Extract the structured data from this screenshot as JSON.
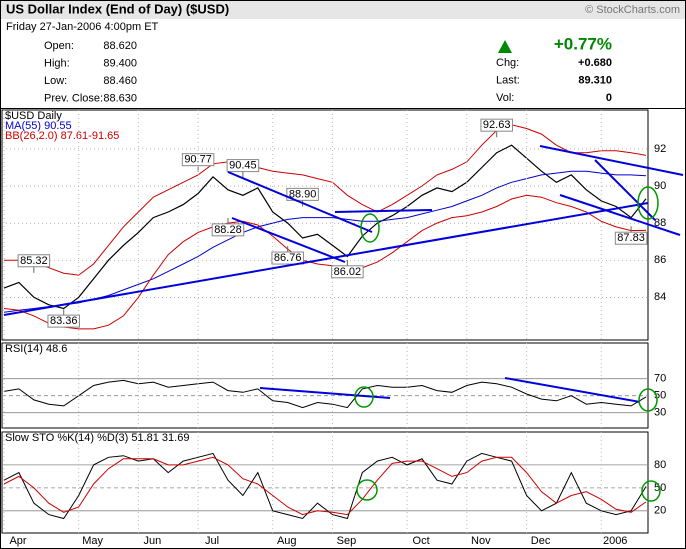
{
  "header": {
    "title": "US Dollar Index (End of Day) ($USD)",
    "copyright": "© StockCharts.com",
    "date": "Friday  27-Jan-2006  4:00pm ET",
    "left": [
      {
        "label": "Open:",
        "value": "88.620"
      },
      {
        "label": "High:",
        "value": "89.400"
      },
      {
        "label": "Low:",
        "value": "88.460"
      },
      {
        "label": "Prev. Close:",
        "value": "88.630"
      }
    ],
    "change_pct": "+0.77%",
    "right": [
      {
        "label": "Chg:",
        "value": "+0.680"
      },
      {
        "label": "Last:",
        "value": "89.310"
      },
      {
        "label": "Vol:",
        "value": "0"
      }
    ]
  },
  "chart_data": [
    {
      "type": "line",
      "title": "$USD Daily",
      "ylim": [
        81.7,
        94.1
      ],
      "yticks": [
        84,
        86,
        88,
        90,
        92
      ],
      "series": [
        {
          "color": "#000000",
          "values": [
            84.5,
            84.8,
            84.0,
            83.6,
            83.4,
            84.0,
            85.0,
            86.0,
            86.8,
            87.5,
            88.3,
            88.6,
            89.0,
            89.6,
            90.5,
            89.8,
            89.5,
            89.9,
            88.6,
            88.0,
            87.2,
            87.4,
            86.8,
            86.2,
            87.3,
            88.0,
            88.4,
            88.9,
            89.5,
            89.9,
            89.7,
            90.2,
            91.0,
            91.8,
            92.2,
            91.5,
            90.8,
            90.2,
            90.6,
            89.8,
            89.2,
            88.9,
            88.3,
            89.31
          ]
        },
        {
          "name": "MA(55) 90.55",
          "color": "#0000cc",
          "values": [
            83.2,
            83.3,
            83.4,
            83.5,
            83.6,
            83.7,
            83.9,
            84.1,
            84.4,
            84.7,
            85.0,
            85.4,
            85.8,
            86.2,
            86.7,
            87.1,
            87.5,
            87.8,
            88.0,
            88.2,
            88.3,
            88.3,
            88.3,
            88.2,
            88.1,
            88.1,
            88.2,
            88.3,
            88.5,
            88.7,
            88.9,
            89.2,
            89.5,
            89.9,
            90.2,
            90.4,
            90.6,
            90.7,
            90.8,
            90.8,
            90.7,
            90.6,
            90.6,
            90.55
          ]
        },
        {
          "name": "BB(26,2.0) 87.61-91.65",
          "color": "#cc0000",
          "upper": [
            86.0,
            86.0,
            85.9,
            85.6,
            85.3,
            85.2,
            85.8,
            86.8,
            87.8,
            88.6,
            89.4,
            89.8,
            90.2,
            90.6,
            91.2,
            91.3,
            91.2,
            91.0,
            90.8,
            90.7,
            90.6,
            90.4,
            90.2,
            89.5,
            89.0,
            88.6,
            89.0,
            89.5,
            90.0,
            90.6,
            90.9,
            91.3,
            92.2,
            93.0,
            93.3,
            93.1,
            92.8,
            92.2,
            91.8,
            91.8,
            91.9,
            91.9,
            91.8,
            91.65
          ],
          "lower": [
            83.4,
            83.3,
            83.0,
            82.6,
            82.4,
            82.3,
            82.3,
            82.5,
            83.0,
            84.0,
            85.2,
            86.3,
            87.0,
            87.5,
            87.8,
            88.0,
            88.1,
            87.9,
            87.3,
            86.6,
            86.0,
            85.8,
            85.7,
            85.5,
            85.6,
            85.9,
            86.4,
            87.0,
            87.6,
            88.0,
            88.3,
            88.4,
            88.6,
            88.9,
            89.3,
            89.5,
            89.4,
            89.1,
            88.9,
            88.6,
            88.1,
            87.8,
            87.6,
            87.61
          ]
        }
      ],
      "annotations": [
        {
          "value": 85.32,
          "label": "85.32"
        },
        {
          "value": 83.36,
          "label": "83.36"
        },
        {
          "value": 90.77,
          "label": "90.77"
        },
        {
          "value": 88.28,
          "label": "88.28"
        },
        {
          "value": 90.45,
          "label": "90.45"
        },
        {
          "value": 86.76,
          "label": "86.76"
        },
        {
          "value": 88.9,
          "label": "88.90"
        },
        {
          "value": 86.02,
          "label": "86.02"
        },
        {
          "value": 92.63,
          "label": "92.63"
        },
        {
          "value": 87.83,
          "label": "87.83"
        }
      ]
    },
    {
      "type": "line",
      "title": "RSI(14) 48.6",
      "ylim": [
        12,
        112
      ],
      "yticks": [
        30,
        50,
        70
      ],
      "series": [
        {
          "color": "#000000",
          "values": [
            55,
            58,
            45,
            40,
            38,
            50,
            62,
            66,
            68,
            64,
            66,
            60,
            62,
            64,
            66,
            56,
            54,
            58,
            44,
            42,
            36,
            42,
            40,
            36,
            58,
            62,
            60,
            60,
            62,
            56,
            54,
            62,
            66,
            64,
            60,
            52,
            46,
            44,
            50,
            40,
            42,
            40,
            38,
            48.6
          ]
        }
      ]
    },
    {
      "type": "line",
      "title": "Slow STO %K(14) %D(3) 51.81 31.69",
      "ylim": [
        -9,
        123
      ],
      "yticks": [
        20,
        50,
        80
      ],
      "categories": [
        "Apr",
        null,
        null,
        null,
        null,
        "May",
        null,
        null,
        null,
        "Jun",
        null,
        null,
        null,
        "Jul",
        null,
        null,
        null,
        null,
        "Aug",
        null,
        null,
        null,
        "Sep",
        null,
        null,
        null,
        null,
        "Oct",
        null,
        null,
        null,
        "Nov",
        null,
        null,
        null,
        "Dec",
        null,
        null,
        null,
        null,
        "2006",
        null,
        null,
        null
      ],
      "series": [
        {
          "color": "#000000",
          "values": [
            60,
            70,
            30,
            15,
            10,
            40,
            80,
            90,
            92,
            85,
            88,
            70,
            85,
            90,
            95,
            60,
            40,
            70,
            20,
            15,
            10,
            30,
            15,
            10,
            70,
            85,
            90,
            80,
            88,
            60,
            55,
            85,
            95,
            90,
            85,
            40,
            20,
            30,
            70,
            30,
            20,
            15,
            20,
            51.81
          ]
        },
        {
          "color": "#cc0000",
          "values": [
            55,
            65,
            50,
            30,
            18,
            25,
            55,
            75,
            88,
            88,
            88,
            80,
            80,
            85,
            90,
            80,
            62,
            55,
            40,
            25,
            15,
            20,
            18,
            15,
            35,
            60,
            82,
            85,
            85,
            75,
            65,
            70,
            85,
            90,
            90,
            70,
            45,
            30,
            40,
            45,
            35,
            22,
            18,
            31.69
          ]
        }
      ]
    }
  ]
}
